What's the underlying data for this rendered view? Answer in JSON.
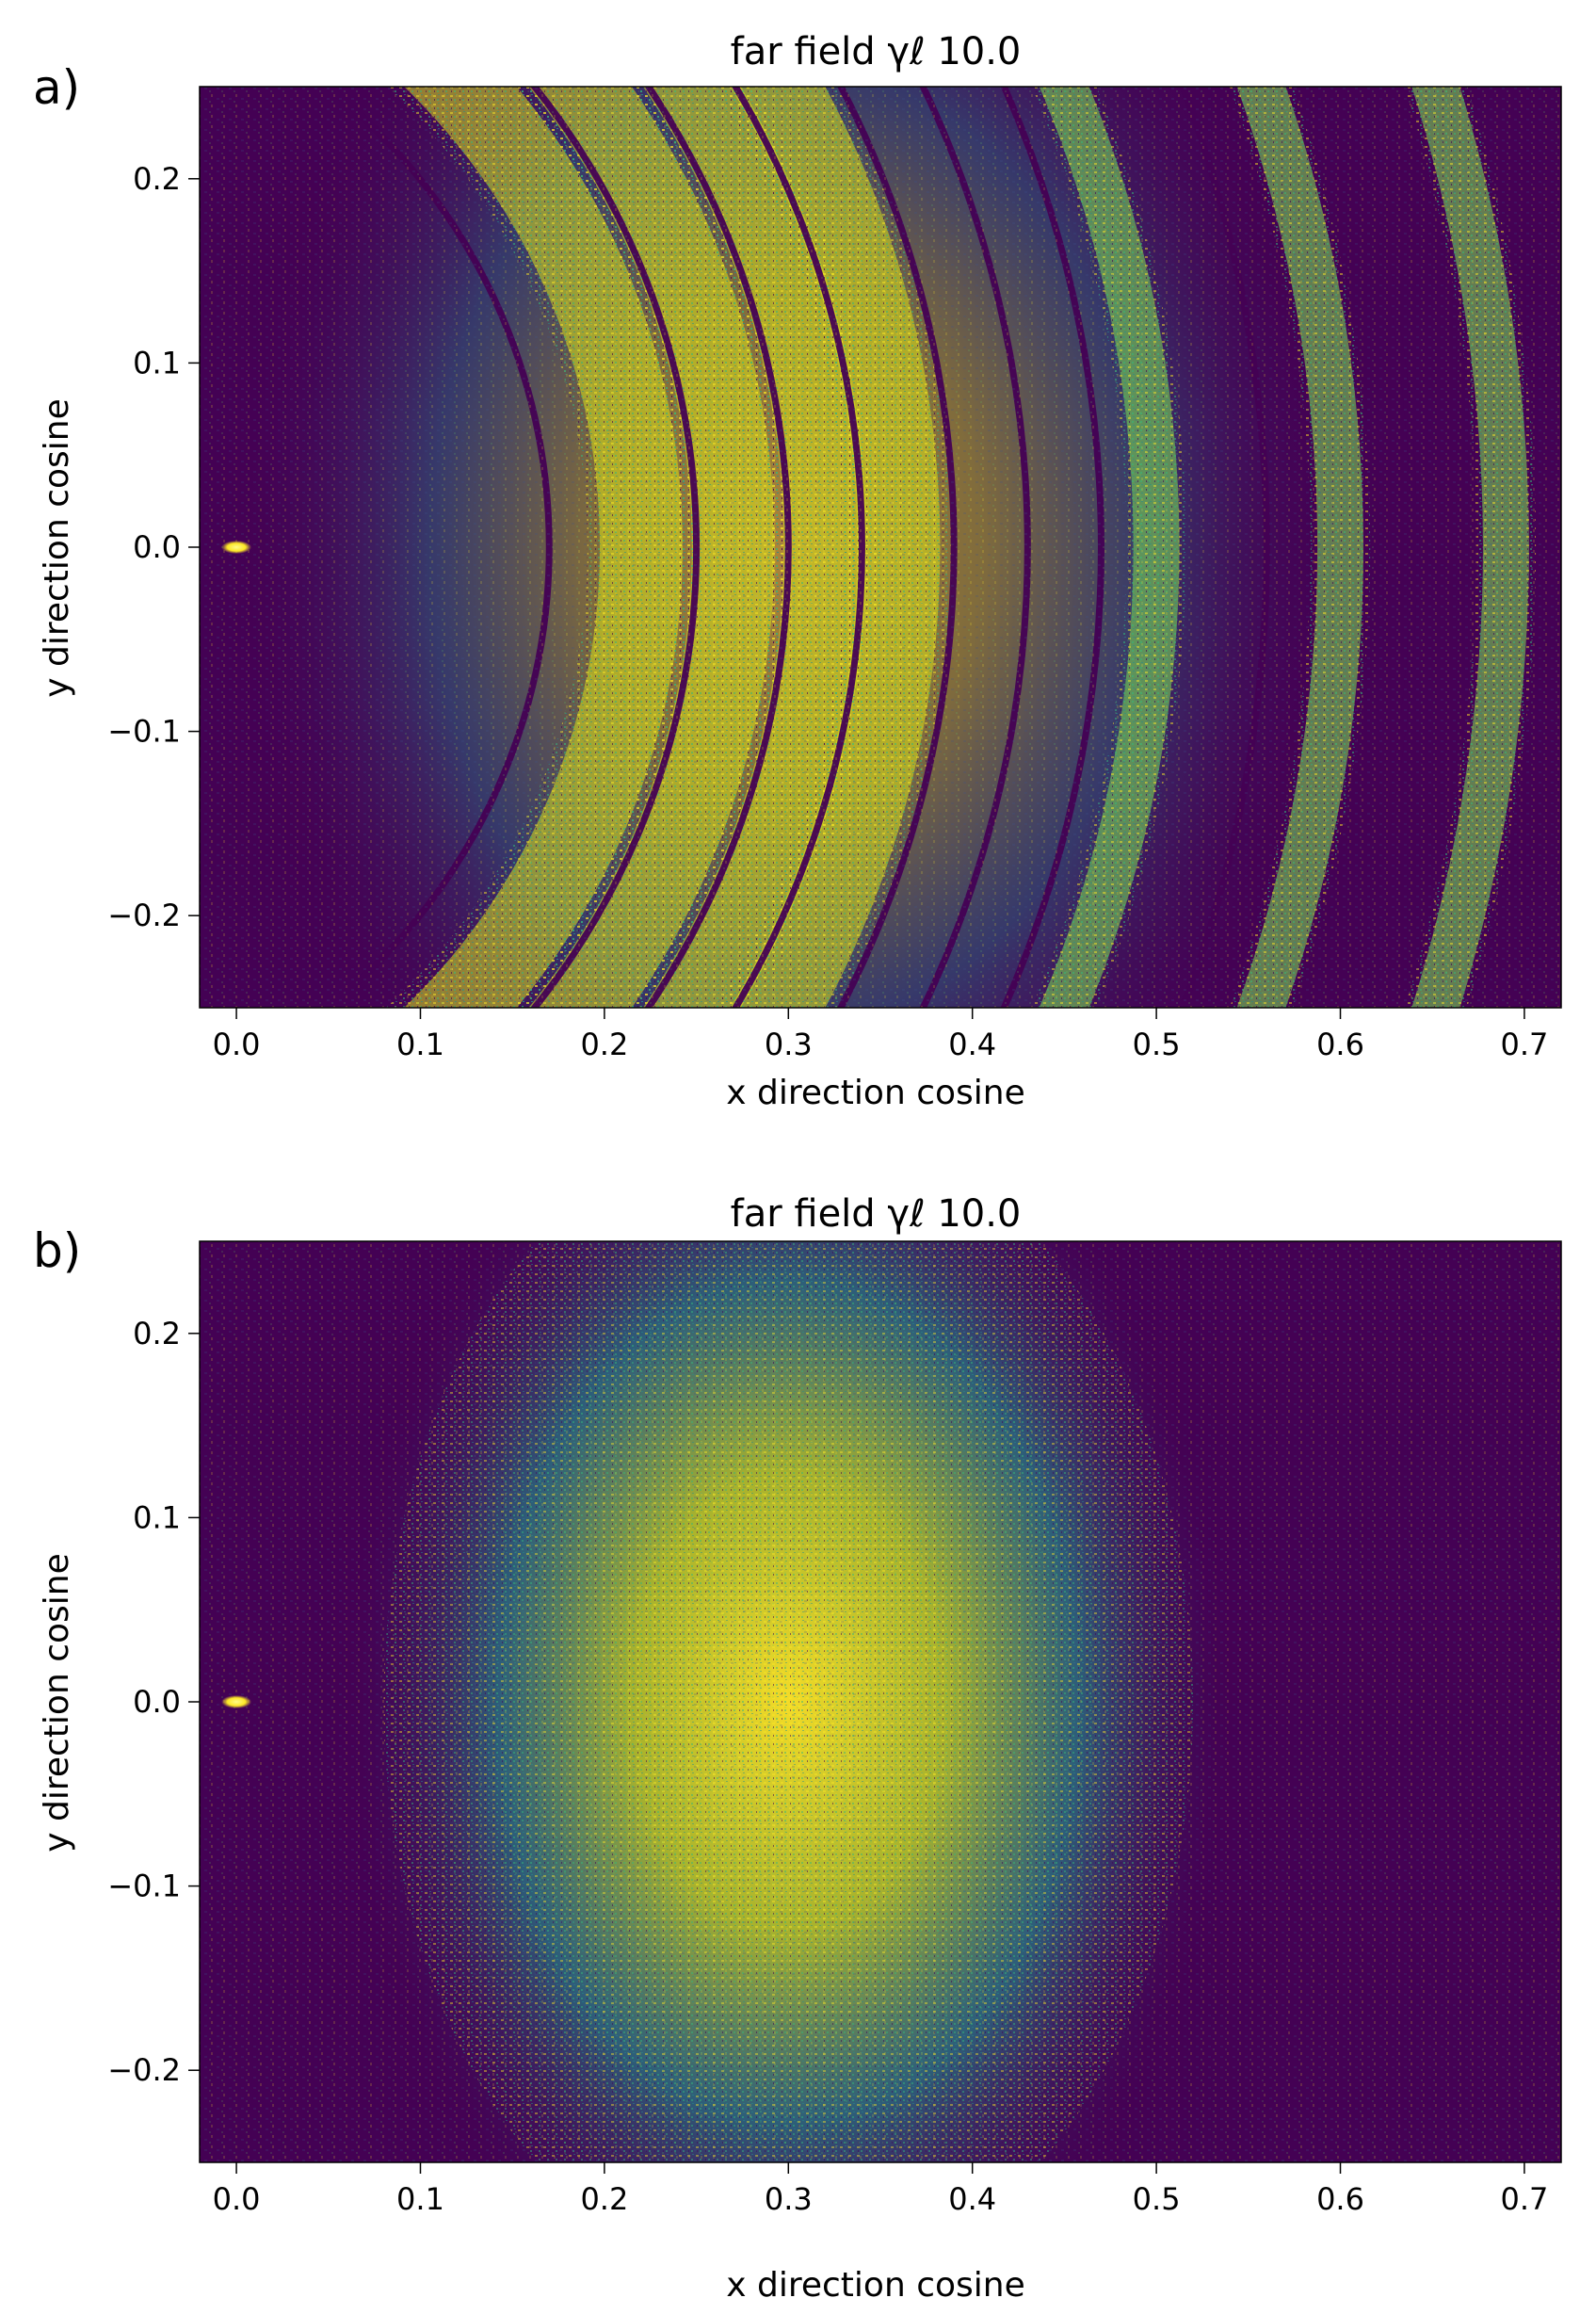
{
  "figure": {
    "background": "#ffffff"
  },
  "colormap": {
    "low": "#440154",
    "mid": "#21908d",
    "high": "#fde725"
  },
  "chart_data": [
    {
      "type": "heatmap",
      "panel_label": "a)",
      "title": "far field γℓ 10.0",
      "xlabel": "x direction cosine",
      "ylabel": "y direction cosine",
      "xlim": [
        -0.02,
        0.72
      ],
      "ylim": [
        -0.25,
        0.25
      ],
      "xticks": [
        0.0,
        0.1,
        0.2,
        0.3,
        0.4,
        0.5,
        0.6,
        0.7
      ],
      "xtick_labels": [
        "0.0",
        "0.1",
        "0.2",
        "0.3",
        "0.4",
        "0.5",
        "0.6",
        "0.7"
      ],
      "yticks": [
        0.2,
        0.1,
        0.0,
        -0.1,
        -0.2
      ],
      "ytick_labels": [
        "0.2",
        "0.1",
        "0.0",
        "−0.1",
        "−0.2"
      ],
      "grid": false,
      "bright_spot": [
        0.0,
        0.0
      ],
      "pattern": "concentric arcs of bright speckle",
      "ring_center": [
        -0.15,
        0.0
      ],
      "dark_rings_x_at_y0": [
        0.17,
        0.25,
        0.3,
        0.34,
        0.39,
        0.43,
        0.47,
        0.56,
        0.64
      ],
      "bright_bands_x_at_y0": [
        0.22,
        0.27,
        0.32,
        0.36,
        0.5,
        0.6,
        0.69
      ]
    },
    {
      "type": "heatmap",
      "panel_label": "b)",
      "title": "far field γℓ 10.0",
      "xlabel": "x direction cosine",
      "ylabel": "y direction cosine",
      "xlim": [
        -0.02,
        0.72
      ],
      "ylim": [
        -0.25,
        0.25
      ],
      "xticks": [
        0.0,
        0.1,
        0.2,
        0.3,
        0.4,
        0.5,
        0.6,
        0.7
      ],
      "xtick_labels": [
        "0.0",
        "0.1",
        "0.2",
        "0.3",
        "0.4",
        "0.5",
        "0.6",
        "0.7"
      ],
      "yticks": [
        0.2,
        0.1,
        0.0,
        -0.1,
        -0.2
      ],
      "ytick_labels": [
        "0.2",
        "0.1",
        "0.0",
        "−0.1",
        "−0.2"
      ],
      "grid": false,
      "bright_spot": [
        0.0,
        0.0
      ],
      "pattern": "diffuse speckle blob",
      "blob_center": [
        0.3,
        0.0
      ],
      "blob_sigma": [
        0.11,
        0.16
      ]
    }
  ]
}
